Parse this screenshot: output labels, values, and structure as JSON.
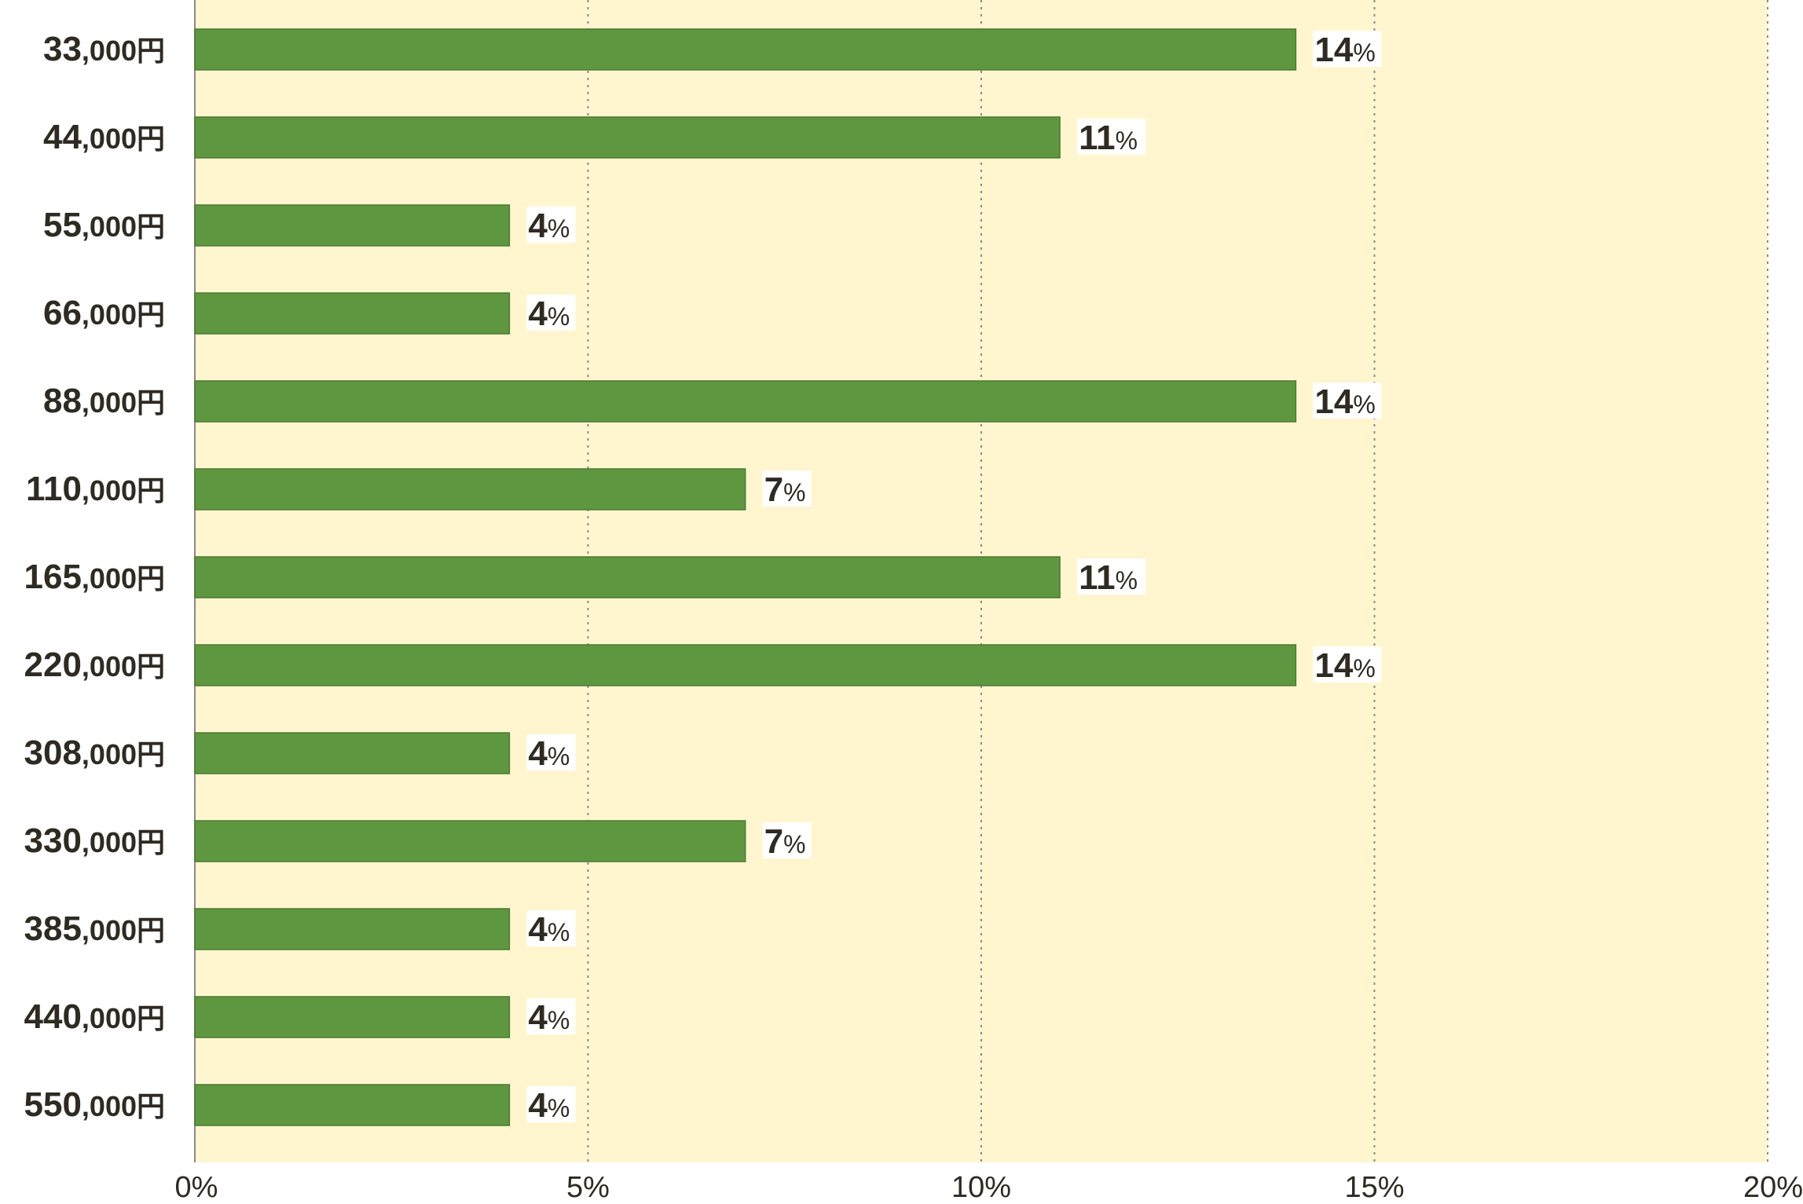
{
  "colors": {
    "plot_background": "#fff6d0",
    "bar_fill": "#5e973f",
    "bar_stroke": "#4c7a32",
    "label_text": "#2f2a22",
    "axis_line": "#8a8a8a",
    "grid_line": "#8a8a8a",
    "label_box": "#ffffff"
  },
  "chart_data": {
    "type": "bar",
    "orientation": "horizontal",
    "categories": [
      "33,000円",
      "44,000円",
      "55,000円",
      "66,000円",
      "88,000円",
      "110,000円",
      "165,000円",
      "220,000円",
      "308,000円",
      "330,000円",
      "385,000円",
      "440,000円",
      "550,000円"
    ],
    "values": [
      14,
      11,
      4,
      4,
      14,
      7,
      11,
      14,
      4,
      7,
      4,
      4,
      4
    ],
    "value_unit": "%",
    "xlim": [
      0,
      20
    ],
    "x_ticks": [
      0,
      5,
      10,
      15,
      20
    ],
    "x_tick_labels": [
      "0%",
      "5%",
      "10%",
      "15%",
      "20%"
    ],
    "grid": "vertical dotted",
    "title": "",
    "xlabel": "",
    "ylabel": ""
  }
}
